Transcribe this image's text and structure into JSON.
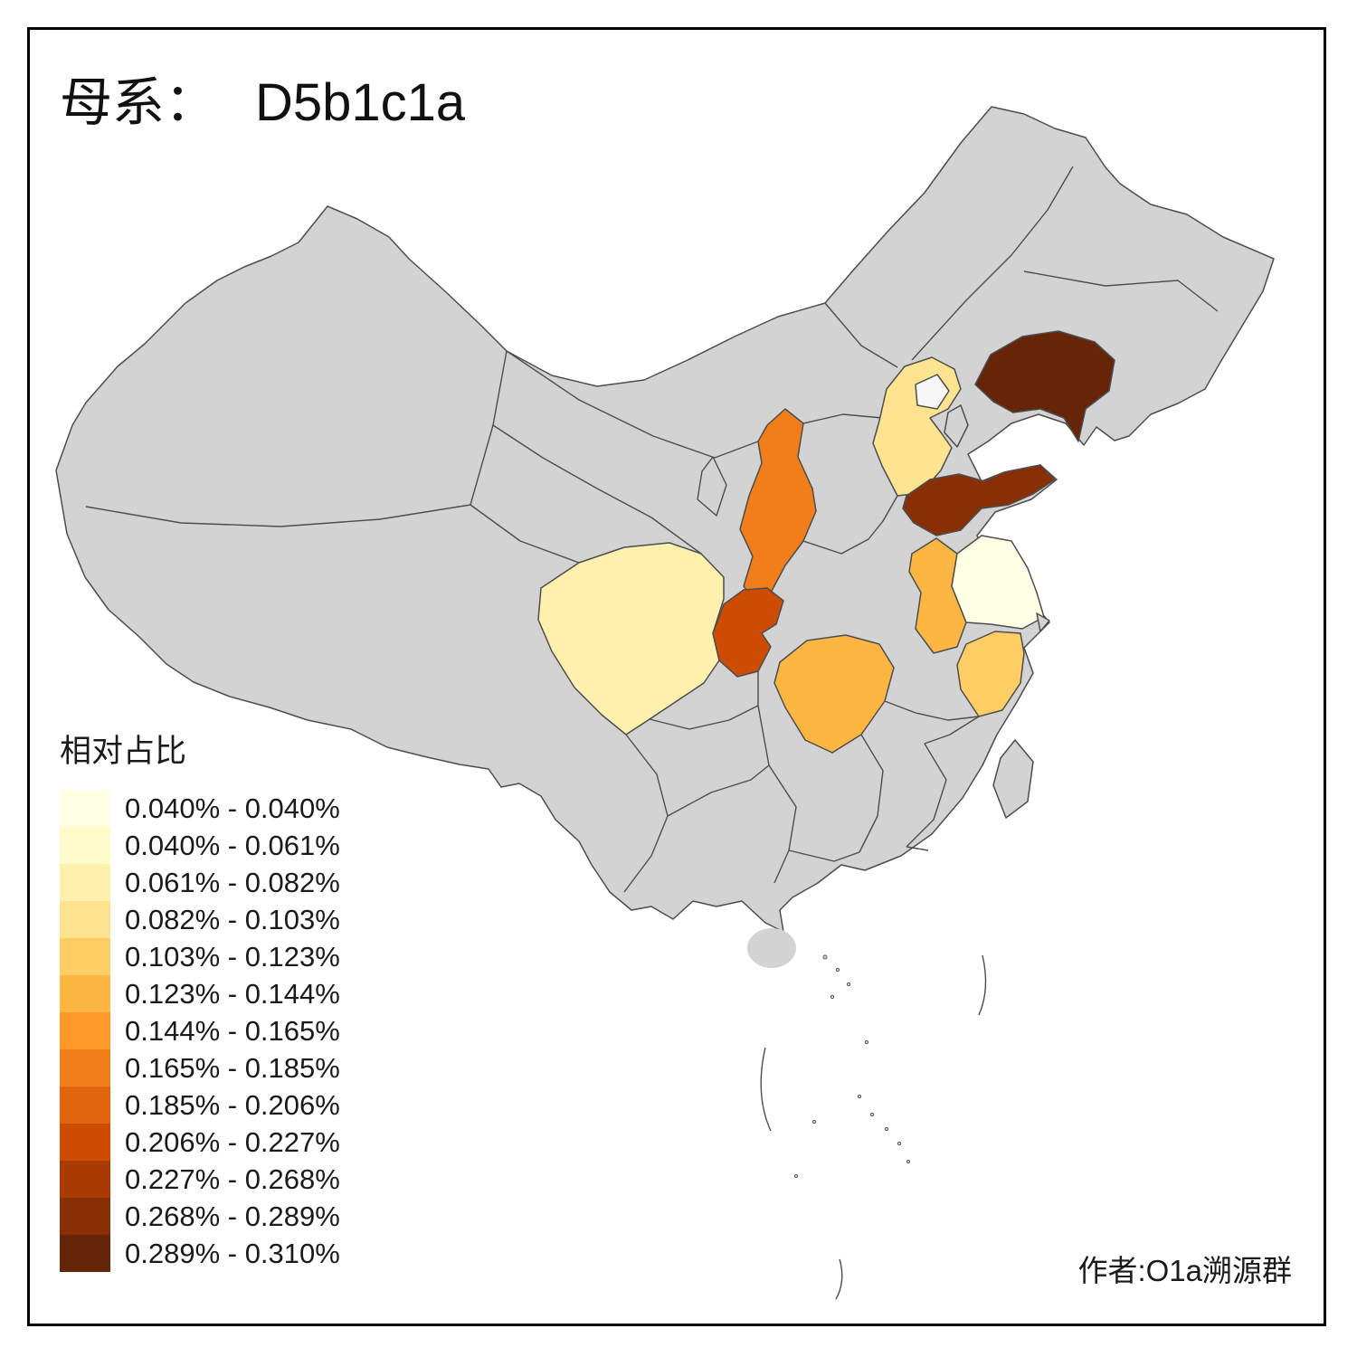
{
  "title": {
    "prefix": "母系：",
    "value": "D5b1c1a"
  },
  "legend": {
    "title": "相对占比",
    "bins": [
      {
        "label": "0.040% - 0.040%",
        "color": "#FFFFE5"
      },
      {
        "label": "0.040% - 0.061%",
        "color": "#FFFACA"
      },
      {
        "label": "0.061% - 0.082%",
        "color": "#FFF0AE"
      },
      {
        "label": "0.082% - 0.103%",
        "color": "#FEE391"
      },
      {
        "label": "0.103% - 0.123%",
        "color": "#FECE65"
      },
      {
        "label": "0.123% - 0.144%",
        "color": "#FEB642"
      },
      {
        "label": "0.144% - 0.165%",
        "color": "#FE9929"
      },
      {
        "label": "0.165% - 0.185%",
        "color": "#F27E1B"
      },
      {
        "label": "0.185% - 0.206%",
        "color": "#E1640E"
      },
      {
        "label": "0.206% - 0.227%",
        "color": "#CC4C02"
      },
      {
        "label": "0.227% - 0.268%",
        "color": "#AA3C03"
      },
      {
        "label": "0.268% - 0.289%",
        "color": "#882F05"
      },
      {
        "label": "0.289% - 0.310%",
        "color": "#662506"
      }
    ]
  },
  "attribution": "作者:O1a溯源群",
  "map": {
    "land_color": "#D3D3D3",
    "border_color": "#4D4D4D",
    "sea_color": "#FFFFFF",
    "regions": [
      {
        "id": "liaoning",
        "name": "Liaoning",
        "color": "#662506",
        "bin": "0.289% - 0.310%"
      },
      {
        "id": "shandong",
        "name": "Shandong",
        "color": "#882F05",
        "bin": "0.268% - 0.289%"
      },
      {
        "id": "chongqing",
        "name": "Chongqing",
        "color": "#CC4C02",
        "bin": "0.206% - 0.227%"
      },
      {
        "id": "shaanxi",
        "name": "Shaanxi",
        "color": "#F27E1B",
        "bin": "0.165% - 0.185%"
      },
      {
        "id": "hubei",
        "name": "Hubei",
        "color": "#FEB642",
        "bin": "0.123% - 0.144%"
      },
      {
        "id": "anhui",
        "name": "Anhui",
        "color": "#FEB642",
        "bin": "0.123% - 0.144%"
      },
      {
        "id": "zhejiang",
        "name": "Zhejiang",
        "color": "#FECE65",
        "bin": "0.103% - 0.123%"
      },
      {
        "id": "hebei",
        "name": "Hebei",
        "color": "#FEE391",
        "bin": "0.082% - 0.103%"
      },
      {
        "id": "sichuan",
        "name": "Sichuan",
        "color": "#FFF0AE",
        "bin": "0.061% - 0.082%"
      },
      {
        "id": "jiangsu",
        "name": "Jiangsu",
        "color": "#FFFFE5",
        "bin": "0.040% - 0.040%"
      },
      {
        "id": "beijing",
        "name": "Beijing",
        "color": "#F7F7F7",
        "bin": ""
      },
      {
        "id": "tianjin",
        "name": "Tianjin",
        "color": "#D3D3D3",
        "bin": ""
      },
      {
        "id": "shanghai",
        "name": "Shanghai",
        "color": "#D3D3D3",
        "bin": ""
      }
    ]
  },
  "chart_data": {
    "type": "heatmap",
    "subtype": "choropleth-map-of-china",
    "title": "母系： D5b1c1a",
    "legend_title": "相对占比",
    "legend_position": "bottom-left",
    "bin_labels": [
      "0.040% - 0.040%",
      "0.040% - 0.061%",
      "0.061% - 0.082%",
      "0.082% - 0.103%",
      "0.103% - 0.123%",
      "0.123% - 0.144%",
      "0.144% - 0.165%",
      "0.165% - 0.185%",
      "0.185% - 0.206%",
      "0.206% - 0.227%",
      "0.227% - 0.268%",
      "0.268% - 0.289%",
      "0.289% - 0.310%"
    ],
    "regions": [
      {
        "name": "Liaoning",
        "bin": "0.289% - 0.310%"
      },
      {
        "name": "Shandong",
        "bin": "0.268% - 0.289%"
      },
      {
        "name": "Chongqing",
        "bin": "0.206% - 0.227%"
      },
      {
        "name": "Shaanxi",
        "bin": "0.165% - 0.185%"
      },
      {
        "name": "Hubei",
        "bin": "0.123% - 0.144%"
      },
      {
        "name": "Anhui",
        "bin": "0.123% - 0.144%"
      },
      {
        "name": "Zhejiang",
        "bin": "0.103% - 0.123%"
      },
      {
        "name": "Hebei",
        "bin": "0.082% - 0.103%"
      },
      {
        "name": "Sichuan",
        "bin": "0.061% - 0.082%"
      },
      {
        "name": "Jiangsu",
        "bin": "0.040% - 0.040%"
      },
      {
        "name": "other provinces",
        "bin": "no data (gray)"
      }
    ],
    "annotations": [
      "作者:O1a溯源群"
    ]
  }
}
